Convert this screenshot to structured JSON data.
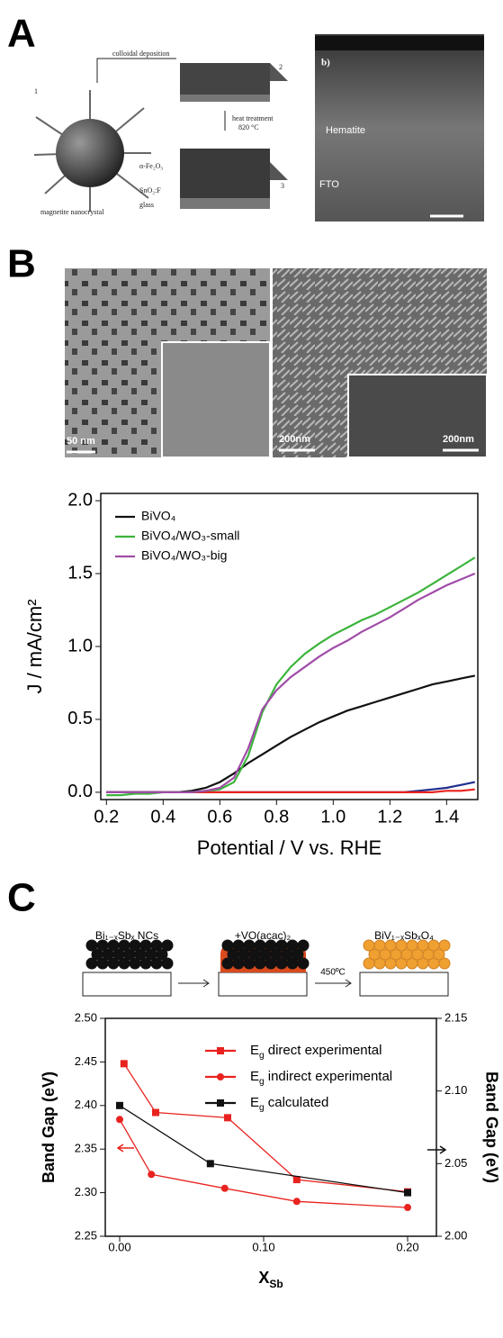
{
  "figure": {
    "panel_labels": [
      "A",
      "B",
      "C"
    ],
    "panel_a": {
      "step_1": "1",
      "step_2": "2",
      "step_3": "3",
      "arrow_1": "colloidal deposition",
      "arrow_2": "heat treatment",
      "arrow_2_temp": "820 °C",
      "layer_1": "α-Fe₂O₃",
      "layer_2": "SnO₂:F",
      "layer_3": "glass",
      "particle": "magnetite nanocrystal",
      "sem_tag": "b)",
      "sem_layer_1": "Hematite",
      "sem_layer_2": "FTO"
    },
    "panel_b": {
      "scale_1": "50 nm",
      "scale_2": "200nm",
      "scale_3": "200nm"
    },
    "panel_c": {
      "step_1": "Bi₁₋ₓSbₓ NCs",
      "step_2": "+VO(acac)₂",
      "arrow_temp": "450ºC",
      "step_3": "BiV₁₋ₓSbₓO₄"
    }
  },
  "chart_data": [
    {
      "type": "line",
      "xlabel": "Potential / V vs. RHE",
      "ylabel": "J / mA/cm²",
      "xlim": [
        0.18,
        1.51
      ],
      "ylim": [
        -0.05,
        2.05
      ],
      "xticks": [
        0.2,
        0.4,
        0.6,
        0.8,
        {
          "value": 1.0,
          "label": "1.0"
        },
        1.2,
        1.4
      ],
      "yticks": [
        {
          "value": 0,
          "label": "0.0"
        },
        0.5,
        {
          "value": 1,
          "label": "1.0"
        },
        1.5,
        {
          "value": 2,
          "label": "2.0"
        }
      ],
      "x": [
        0.2,
        0.25,
        0.3,
        0.35,
        0.4,
        0.45,
        0.5,
        0.55,
        0.6,
        0.65,
        0.7,
        0.75,
        0.8,
        0.85,
        0.9,
        0.95,
        1.0,
        1.05,
        1.1,
        1.15,
        1.2,
        1.25,
        1.3,
        1.35,
        1.4,
        1.45,
        1.5
      ],
      "series": [
        {
          "color": "#1f2f8f",
          "values": [
            0,
            0,
            0,
            0,
            0,
            0,
            0,
            0,
            0,
            0,
            0,
            0,
            0,
            0,
            0,
            0,
            0,
            0,
            0,
            0,
            0,
            0,
            0.01,
            0.02,
            0.03,
            0.05,
            0.07
          ]
        },
        {
          "color": "#e8231f",
          "values": [
            0,
            0,
            0,
            0,
            0,
            0,
            0,
            0,
            0,
            0,
            0,
            0,
            0,
            0,
            0,
            0,
            0,
            0,
            0,
            0,
            0,
            0,
            0,
            0,
            0.01,
            0.01,
            0.02
          ]
        },
        {
          "name": "BiVO₄",
          "color": "#111111",
          "values": [
            0,
            0,
            0,
            0,
            0,
            0,
            0.01,
            0.03,
            0.07,
            0.13,
            0.2,
            0.26,
            0.32,
            0.38,
            0.43,
            0.48,
            0.52,
            0.56,
            0.59,
            0.62,
            0.65,
            0.68,
            0.71,
            0.74,
            0.76,
            0.78,
            0.8
          ]
        },
        {
          "name": "BiVO₄/WO₃-small",
          "color": "#3cb43c",
          "values": [
            -0.02,
            -0.02,
            -0.01,
            -0.01,
            0,
            0,
            0,
            0.01,
            0.02,
            0.07,
            0.25,
            0.55,
            0.74,
            0.86,
            0.95,
            1.02,
            1.08,
            1.13,
            1.18,
            1.22,
            1.27,
            1.32,
            1.37,
            1.43,
            1.49,
            1.55,
            1.61
          ]
        },
        {
          "name": "BiVO₄/WO₃-big",
          "color": "#a04ca8",
          "values": [
            0,
            0,
            0,
            0,
            0,
            0,
            0,
            0.01,
            0.03,
            0.1,
            0.3,
            0.57,
            0.7,
            0.79,
            0.86,
            0.93,
            0.99,
            1.04,
            1.1,
            1.15,
            1.2,
            1.26,
            1.32,
            1.37,
            1.42,
            1.46,
            1.5
          ]
        }
      ]
    },
    {
      "type": "line",
      "xlabel": "XSb",
      "ylabel": "Band Gap (eV)",
      "y2label": "Band Gap (eV)",
      "xlim": [
        -0.01,
        0.22
      ],
      "ylim": [
        2.25,
        2.5
      ],
      "y2lim": [
        2.0,
        2.15
      ],
      "xticks": [
        {
          "value": 0,
          "label": "0.00"
        },
        {
          "value": 0.1,
          "label": "0.10"
        },
        {
          "value": 0.2,
          "label": "0.20"
        }
      ],
      "yticks": [
        2.25,
        {
          "value": 2.3,
          "label": "2.30"
        },
        2.35,
        {
          "value": 2.4,
          "label": "2.40"
        },
        2.45,
        {
          "value": 2.5,
          "label": "2.50"
        }
      ],
      "y2ticks": [
        {
          "value": 2.0,
          "label": "2.00"
        },
        2.05,
        {
          "value": 2.1,
          "label": "2.10"
        },
        2.15
      ],
      "series": [
        {
          "name": "Eg direct experimental",
          "color": "#e8231f",
          "marker": "square",
          "x": [
            0.003,
            0.025,
            0.075,
            0.123,
            0.2
          ],
          "values": [
            2.448,
            2.392,
            2.386,
            2.315,
            2.301
          ]
        },
        {
          "name": "Eg indirect experimental",
          "color": "#e8231f",
          "marker": "circle",
          "x": [
            0,
            0.022,
            0.073,
            0.123,
            0.2
          ],
          "values": [
            2.384,
            2.321,
            2.305,
            2.29,
            2.283
          ]
        },
        {
          "name": "Eg calculated",
          "color": "#111111",
          "marker": "square",
          "axis": "y2",
          "x": [
            0,
            0.063,
            0.2
          ],
          "values": [
            2.09,
            2.05,
            2.03
          ]
        }
      ]
    }
  ]
}
